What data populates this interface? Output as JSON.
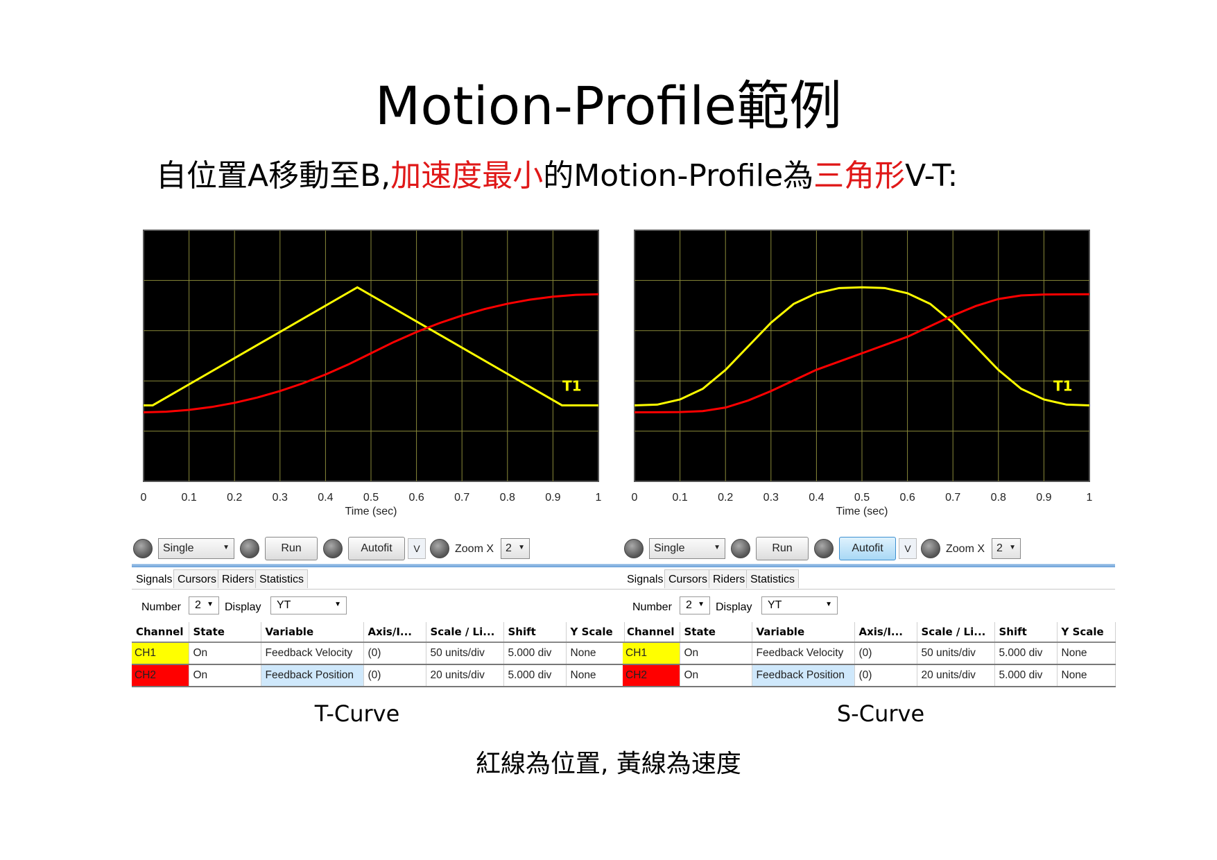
{
  "slide": {
    "title": "Motion-Profile範例",
    "subtitle_parts": [
      "自位置A移動至B,",
      "加速度最小",
      "的Motion-Profile為",
      "三角形",
      "V-T:"
    ],
    "footnote": "紅線為位置, 黃線為速度",
    "accent_color": "#e01818"
  },
  "panels": [
    {
      "caption": "T-Curve",
      "cursor_label": "T1",
      "x_axis_label": "Time (sec)",
      "x_ticks": [
        "0",
        "0.1",
        "0.2",
        "0.3",
        "0.4",
        "0.5",
        "0.6",
        "0.7",
        "0.8",
        "0.9",
        "1"
      ],
      "toolbar": {
        "mode": "Single",
        "run": "Run",
        "autofit": "Autofit",
        "autofit_active": false,
        "v": "V",
        "zoom_label": "Zoom X",
        "zoom_value": "2"
      },
      "tabs": [
        "Signals",
        "Cursors",
        "Riders",
        "Statistics"
      ],
      "number_label": "Number",
      "number_value": "2",
      "display_label": "Display",
      "display_value": "YT",
      "columns": [
        "Channel",
        "State",
        "Variable",
        "Axis/I...",
        "Scale / Li...",
        "Shift",
        "Y Scale"
      ],
      "rows": [
        {
          "channel": "CH1",
          "color": "#ffff00",
          "state": "On",
          "variable": "Feedback Velocity",
          "axis": "(0)",
          "scale": "50 units/div",
          "shift": "5.000 div",
          "yscale": "None"
        },
        {
          "channel": "CH2",
          "color": "#ff0000",
          "state": "On",
          "variable": "Feedback Position",
          "axis": "(0)",
          "scale": "20 units/div",
          "shift": "5.000 div",
          "yscale": "None"
        }
      ]
    },
    {
      "caption": "S-Curve",
      "cursor_label": "T1",
      "x_axis_label": "Time (sec)",
      "x_ticks": [
        "0",
        "0.1",
        "0.2",
        "0.3",
        "0.4",
        "0.5",
        "0.6",
        "0.7",
        "0.8",
        "0.9",
        "1"
      ],
      "toolbar": {
        "mode": "Single",
        "run": "Run",
        "autofit": "Autofit",
        "autofit_active": true,
        "v": "V",
        "zoom_label": "Zoom X",
        "zoom_value": "2"
      },
      "tabs": [
        "Signals",
        "Cursors",
        "Riders",
        "Statistics"
      ],
      "number_label": "Number",
      "number_value": "2",
      "display_label": "Display",
      "display_value": "YT",
      "columns": [
        "Channel",
        "State",
        "Variable",
        "Axis/I...",
        "Scale / Li...",
        "Shift",
        "Y Scale"
      ],
      "rows": [
        {
          "channel": "CH1",
          "color": "#ffff00",
          "state": "On",
          "variable": "Feedback Velocity",
          "axis": "(0)",
          "scale": "50 units/div",
          "shift": "5.000 div",
          "yscale": "None"
        },
        {
          "channel": "CH2",
          "color": "#ff0000",
          "state": "On",
          "variable": "Feedback Position",
          "axis": "(0)",
          "scale": "20 units/div",
          "shift": "5.000 div",
          "yscale": "None"
        }
      ]
    }
  ],
  "chart_data": [
    {
      "type": "line",
      "xlabel": "Time (sec)",
      "xlim": [
        0,
        1
      ],
      "grid": true,
      "series": [
        {
          "name": "CH1",
          "color": "#ffff00",
          "x": [
            0,
            0.02,
            0.47,
            0.92,
            1.0
          ],
          "y": [
            0,
            0,
            1,
            0,
            0
          ]
        },
        {
          "name": "CH2",
          "color": "#ff0000",
          "x": [
            0,
            0.05,
            0.1,
            0.15,
            0.2,
            0.25,
            0.3,
            0.35,
            0.4,
            0.45,
            0.5,
            0.55,
            0.6,
            0.65,
            0.7,
            0.75,
            0.8,
            0.85,
            0.9,
            0.95,
            1.0
          ],
          "y": [
            0,
            0.005,
            0.02,
            0.045,
            0.08,
            0.125,
            0.18,
            0.245,
            0.32,
            0.405,
            0.5,
            0.595,
            0.68,
            0.755,
            0.82,
            0.875,
            0.92,
            0.955,
            0.98,
            0.995,
            1.0
          ]
        }
      ]
    },
    {
      "type": "line",
      "xlabel": "Time (sec)",
      "xlim": [
        0,
        1
      ],
      "grid": true,
      "series": [
        {
          "name": "CH1",
          "color": "#ffff00",
          "x": [
            0,
            0.05,
            0.1,
            0.15,
            0.2,
            0.25,
            0.3,
            0.35,
            0.4,
            0.45,
            0.5,
            0.55,
            0.6,
            0.65,
            0.7,
            0.75,
            0.8,
            0.85,
            0.9,
            0.95,
            1.0
          ],
          "y": [
            0,
            0.006,
            0.05,
            0.14,
            0.3,
            0.5,
            0.7,
            0.86,
            0.95,
            0.994,
            1.0,
            0.994,
            0.95,
            0.86,
            0.7,
            0.5,
            0.3,
            0.14,
            0.05,
            0.006,
            0
          ]
        },
        {
          "name": "CH2",
          "color": "#ff0000",
          "x": [
            0,
            0.05,
            0.1,
            0.15,
            0.2,
            0.25,
            0.3,
            0.35,
            0.4,
            0.45,
            0.5,
            0.55,
            0.6,
            0.65,
            0.7,
            0.75,
            0.8,
            0.85,
            0.9,
            0.95,
            1.0
          ],
          "y": [
            0,
            0.0002,
            0.002,
            0.01,
            0.04,
            0.1,
            0.18,
            0.27,
            0.36,
            0.43,
            0.5,
            0.57,
            0.64,
            0.73,
            0.82,
            0.9,
            0.96,
            0.99,
            0.998,
            0.9998,
            1.0
          ]
        }
      ]
    }
  ]
}
